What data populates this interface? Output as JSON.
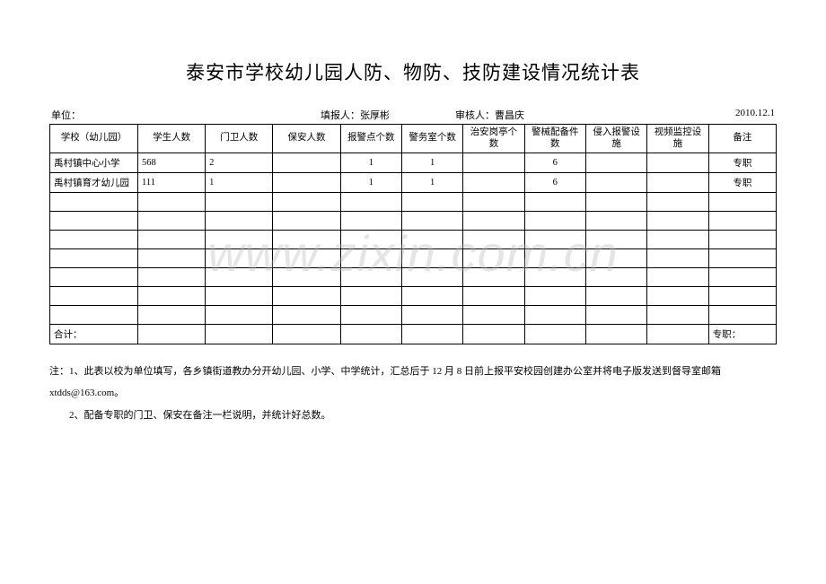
{
  "title": "泰安市学校幼儿园人防、物防、技防建设情况统计表",
  "meta": {
    "unit_label": "单位：",
    "reporter_label": "填报人：",
    "reporter_value": "张厚彬",
    "reviewer_label": "审核人：",
    "reviewer_value": "曹昌庆",
    "date": "2010.12.1"
  },
  "columns": [
    "学校（幼儿园）",
    "学生人数",
    "门卫人数",
    "保安人数",
    "报警点个数",
    "警务室个数",
    "治安岗亭个数",
    "警械配备件数",
    "侵入报警设施",
    "视频监控设施",
    "备注"
  ],
  "rows": [
    [
      "禹村镇中心小学",
      "568",
      "2",
      "",
      "1",
      "1",
      "",
      "6",
      "",
      "",
      "专职"
    ],
    [
      "禹村镇育才幼儿园",
      "111",
      "1",
      "",
      "1",
      "1",
      "",
      "6",
      "",
      "",
      "专职"
    ],
    [
      "",
      "",
      "",
      "",
      "",
      "",
      "",
      "",
      "",
      "",
      ""
    ],
    [
      "",
      "",
      "",
      "",
      "",
      "",
      "",
      "",
      "",
      "",
      ""
    ],
    [
      "",
      "",
      "",
      "",
      "",
      "",
      "",
      "",
      "",
      "",
      ""
    ],
    [
      "",
      "",
      "",
      "",
      "",
      "",
      "",
      "",
      "",
      "",
      ""
    ],
    [
      "",
      "",
      "",
      "",
      "",
      "",
      "",
      "",
      "",
      "",
      ""
    ],
    [
      "",
      "",
      "",
      "",
      "",
      "",
      "",
      "",
      "",
      "",
      ""
    ],
    [
      "",
      "",
      "",
      "",
      "",
      "",
      "",
      "",
      "",
      "",
      ""
    ]
  ],
  "totals_row": [
    "合计：",
    "",
    "",
    "",
    "",
    "",
    "",
    "",
    "",
    "",
    "专职："
  ],
  "notes": {
    "line1": "注：1、此表以校为单位填写，各乡镇街道教办分开幼儿园、小学、中学统计，汇总后于 12 月 8 日前上报平安校园创建办公室并将电子版发送到督导室邮箱 xtdds@163.com。",
    "line2": "2、配备专职的门卫、保安在备注一栏说明，并统计好总数。"
  },
  "watermark": "www.zixin.com.cn"
}
